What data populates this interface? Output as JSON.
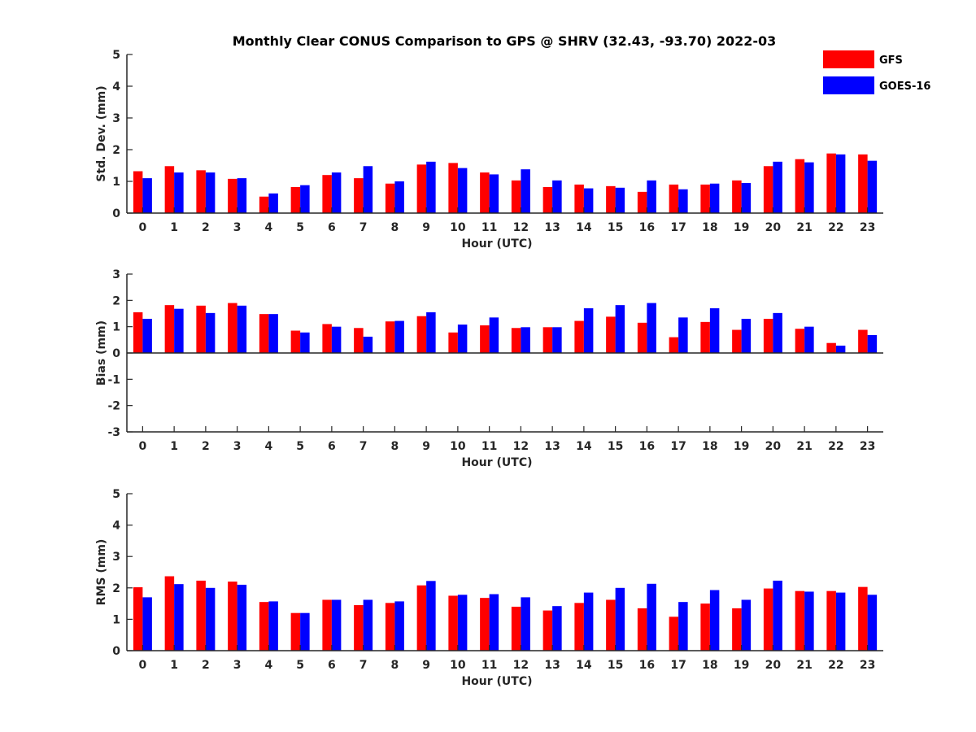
{
  "chart_data": {
    "type": "bar",
    "title": "Monthly Clear CONUS Comparison to GPS @ SHRV (32.43, -93.70) 2022-03",
    "legend": {
      "position": "top-right",
      "entries": [
        {
          "name": "GFS",
          "color": "#ff0000"
        },
        {
          "name": "GOES-16",
          "color": "#0000ff"
        }
      ]
    },
    "categories": [
      "0",
      "1",
      "2",
      "3",
      "4",
      "5",
      "6",
      "7",
      "8",
      "9",
      "10",
      "11",
      "12",
      "13",
      "14",
      "15",
      "16",
      "17",
      "18",
      "19",
      "20",
      "21",
      "22",
      "23"
    ],
    "panels": [
      {
        "id": "std",
        "xlabel": "Hour (UTC)",
        "ylabel": "Std. Dev. (mm)",
        "ylim": [
          0,
          5
        ],
        "yticks": [
          "0",
          "1",
          "2",
          "3",
          "4",
          "5"
        ],
        "series": [
          {
            "name": "GFS",
            "color": "#ff0000",
            "values": [
              1.32,
              1.48,
              1.35,
              1.08,
              0.52,
              0.82,
              1.2,
              1.1,
              0.93,
              1.53,
              1.58,
              1.28,
              1.03,
              0.82,
              0.9,
              0.85,
              0.67,
              0.9,
              0.9,
              1.03,
              1.48,
              1.7,
              1.88,
              1.85
            ]
          },
          {
            "name": "GOES-16",
            "color": "#0000ff",
            "values": [
              1.1,
              1.28,
              1.28,
              1.1,
              0.62,
              0.88,
              1.28,
              1.48,
              1.0,
              1.62,
              1.42,
              1.22,
              1.38,
              1.03,
              0.78,
              0.8,
              1.03,
              0.75,
              0.93,
              0.95,
              1.62,
              1.6,
              1.85,
              1.65
            ]
          }
        ]
      },
      {
        "id": "bias",
        "xlabel": "Hour (UTC)",
        "ylabel": "Bias (mm)",
        "ylim": [
          -3,
          3
        ],
        "yticks": [
          "-3",
          "-2",
          "-1",
          "0",
          "1",
          "2",
          "3"
        ],
        "series": [
          {
            "name": "GFS",
            "color": "#ff0000",
            "values": [
              1.55,
              1.82,
              1.8,
              1.9,
              1.48,
              0.85,
              1.1,
              0.95,
              1.2,
              1.4,
              0.78,
              1.05,
              0.95,
              0.98,
              1.22,
              1.38,
              1.15,
              0.6,
              1.18,
              0.88,
              1.3,
              0.92,
              0.38,
              0.88
            ]
          },
          {
            "name": "GOES-16",
            "color": "#0000ff",
            "values": [
              1.3,
              1.68,
              1.52,
              1.8,
              1.48,
              0.78,
              1.0,
              0.62,
              1.22,
              1.55,
              1.08,
              1.35,
              0.98,
              0.98,
              1.7,
              1.82,
              1.9,
              1.35,
              1.7,
              1.3,
              1.52,
              1.0,
              0.28,
              0.68
            ]
          }
        ]
      },
      {
        "id": "rms",
        "xlabel": "Hour (UTC)",
        "ylabel": "RMS (mm)",
        "ylim": [
          0,
          5
        ],
        "yticks": [
          "0",
          "1",
          "2",
          "3",
          "4",
          "5"
        ],
        "series": [
          {
            "name": "GFS",
            "color": "#ff0000",
            "values": [
              2.02,
              2.37,
              2.23,
              2.2,
              1.55,
              1.2,
              1.62,
              1.45,
              1.52,
              2.08,
              1.75,
              1.68,
              1.4,
              1.28,
              1.52,
              1.62,
              1.35,
              1.08,
              1.5,
              1.35,
              1.98,
              1.9,
              1.9,
              2.03
            ]
          },
          {
            "name": "GOES-16",
            "color": "#0000ff",
            "values": [
              1.7,
              2.12,
              2.0,
              2.1,
              1.57,
              1.2,
              1.62,
              1.62,
              1.57,
              2.22,
              1.78,
              1.8,
              1.7,
              1.42,
              1.85,
              2.0,
              2.13,
              1.55,
              1.93,
              1.62,
              2.23,
              1.88,
              1.85,
              1.78
            ]
          }
        ]
      }
    ]
  }
}
